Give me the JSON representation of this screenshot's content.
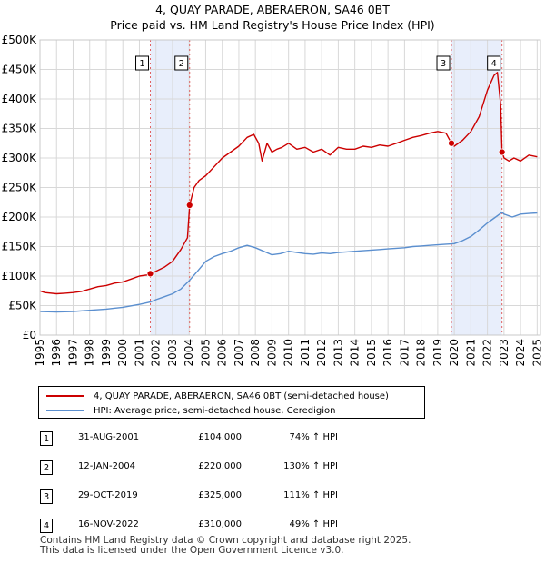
{
  "header": {
    "title": "4, QUAY PARADE, ABERAERON, SA46 0BT",
    "subtitle": "Price paid vs. HM Land Registry's House Price Index (HPI)"
  },
  "chart_data": {
    "type": "line",
    "title": "4, QUAY PARADE, ABERAERON, SA46 0BT",
    "subtitle": "Price paid vs. HM Land Registry's House Price Index (HPI)",
    "xlabel": "",
    "ylabel": "",
    "xlim": [
      1995,
      2025.2
    ],
    "ylim": [
      0,
      500000
    ],
    "grid": true,
    "y_ticks": [
      {
        "value": 0,
        "label": "£0"
      },
      {
        "value": 50000,
        "label": "£50K"
      },
      {
        "value": 100000,
        "label": "£100K"
      },
      {
        "value": 150000,
        "label": "£150K"
      },
      {
        "value": 200000,
        "label": "£200K"
      },
      {
        "value": 250000,
        "label": "£250K"
      },
      {
        "value": 300000,
        "label": "£300K"
      },
      {
        "value": 350000,
        "label": "£350K"
      },
      {
        "value": 400000,
        "label": "£400K"
      },
      {
        "value": 450000,
        "label": "£450K"
      },
      {
        "value": 500000,
        "label": "£500K"
      }
    ],
    "x_ticks": [
      "1995",
      "1996",
      "1997",
      "1998",
      "1999",
      "2000",
      "2001",
      "2002",
      "2003",
      "2004",
      "2005",
      "2006",
      "2007",
      "2008",
      "2009",
      "2010",
      "2011",
      "2012",
      "2013",
      "2014",
      "2015",
      "2016",
      "2017",
      "2018",
      "2019",
      "2020",
      "2021",
      "2022",
      "2023",
      "2024",
      "2025"
    ],
    "shaded_periods": [
      {
        "from": 2001.66,
        "to": 2004.03
      },
      {
        "from": 2019.83,
        "to": 2022.88
      }
    ],
    "series": [
      {
        "name": "4, QUAY PARADE, ABERAERON, SA46 0BT (semi-detached house)",
        "color": "#cc0000",
        "x": [
          1995.0,
          1995.3,
          1996.0,
          1996.5,
          1997.0,
          1997.5,
          1998.0,
          1998.5,
          1999.0,
          1999.5,
          2000.0,
          2000.5,
          2001.0,
          2001.5,
          2001.66,
          2002.0,
          2002.5,
          2003.0,
          2003.5,
          2003.9,
          2004.03,
          2004.3,
          2004.6,
          2005.0,
          2005.5,
          2006.0,
          2006.5,
          2007.0,
          2007.5,
          2007.9,
          2008.2,
          2008.4,
          2008.7,
          2009.0,
          2009.3,
          2009.6,
          2010.0,
          2010.5,
          2011.0,
          2011.5,
          2012.0,
          2012.5,
          2013.0,
          2013.5,
          2014.0,
          2014.5,
          2015.0,
          2015.5,
          2016.0,
          2016.5,
          2017.0,
          2017.5,
          2018.0,
          2018.5,
          2019.0,
          2019.5,
          2019.83,
          2020.0,
          2020.5,
          2021.0,
          2021.5,
          2022.0,
          2022.4,
          2022.6,
          2022.8,
          2022.88,
          2023.0,
          2023.3,
          2023.6,
          2024.0,
          2024.5,
          2025.0
        ],
        "values": [
          75000,
          72000,
          70000,
          71000,
          72000,
          74000,
          78000,
          82000,
          84000,
          88000,
          90000,
          95000,
          100000,
          102000,
          104000,
          108000,
          115000,
          125000,
          145000,
          165000,
          220000,
          250000,
          262000,
          270000,
          285000,
          300000,
          310000,
          320000,
          335000,
          340000,
          325000,
          295000,
          325000,
          310000,
          315000,
          318000,
          325000,
          315000,
          318000,
          310000,
          315000,
          305000,
          318000,
          315000,
          315000,
          320000,
          318000,
          322000,
          320000,
          325000,
          330000,
          335000,
          338000,
          342000,
          345000,
          342000,
          325000,
          320000,
          330000,
          345000,
          370000,
          415000,
          440000,
          445000,
          390000,
          310000,
          300000,
          295000,
          300000,
          295000,
          305000,
          302000
        ]
      },
      {
        "name": "HPI: Average price, semi-detached house, Ceredigion",
        "color": "#5b8fcf",
        "x": [
          1995.0,
          1996.0,
          1997.0,
          1998.0,
          1999.0,
          2000.0,
          2001.0,
          2001.66,
          2002.0,
          2002.5,
          2003.0,
          2003.5,
          2004.0,
          2004.5,
          2005.0,
          2005.5,
          2006.0,
          2006.5,
          2007.0,
          2007.5,
          2008.0,
          2008.5,
          2009.0,
          2009.5,
          2010.0,
          2010.5,
          2011.0,
          2011.5,
          2012.0,
          2012.5,
          2013.0,
          2013.5,
          2014.0,
          2014.5,
          2015.0,
          2015.5,
          2016.0,
          2016.5,
          2017.0,
          2017.5,
          2018.0,
          2018.5,
          2019.0,
          2019.5,
          2019.83,
          2020.0,
          2020.5,
          2021.0,
          2021.5,
          2022.0,
          2022.5,
          2022.88,
          2023.0,
          2023.5,
          2024.0,
          2024.5,
          2025.0
        ],
        "values": [
          40000,
          39000,
          40000,
          42000,
          44000,
          47000,
          52000,
          56000,
          60000,
          65000,
          70000,
          78000,
          92000,
          108000,
          125000,
          133000,
          138000,
          142000,
          148000,
          152000,
          148000,
          142000,
          136000,
          138000,
          142000,
          140000,
          138000,
          137000,
          139000,
          138000,
          140000,
          141000,
          142000,
          143000,
          144000,
          145000,
          146000,
          147000,
          148000,
          150000,
          151000,
          152000,
          153000,
          154000,
          154500,
          155000,
          160000,
          167000,
          178000,
          190000,
          200000,
          208000,
          205000,
          200000,
          205000,
          206000,
          207000
        ]
      }
    ],
    "transactions": [
      {
        "id": "1",
        "x": 2001.66,
        "value": 104000
      },
      {
        "id": "2",
        "x": 2004.03,
        "value": 220000
      },
      {
        "id": "3",
        "x": 2019.83,
        "value": 325000
      },
      {
        "id": "4",
        "x": 2022.88,
        "value": 310000
      }
    ]
  },
  "legend": {
    "items": [
      {
        "label": "4, QUAY PARADE, ABERAERON, SA46 0BT (semi-detached house)",
        "color": "#cc0000"
      },
      {
        "label": "HPI: Average price, semi-detached house, Ceredigion",
        "color": "#5b8fcf"
      }
    ]
  },
  "transactions_table": [
    {
      "num": "1",
      "date": "31-AUG-2001",
      "price": "£104,000",
      "hpi": "74% ↑ HPI"
    },
    {
      "num": "2",
      "date": "12-JAN-2004",
      "price": "£220,000",
      "hpi": "130% ↑ HPI"
    },
    {
      "num": "3",
      "date": "29-OCT-2019",
      "price": "£325,000",
      "hpi": "111% ↑ HPI"
    },
    {
      "num": "4",
      "date": "16-NOV-2022",
      "price": "£310,000",
      "hpi": "49% ↑ HPI"
    }
  ],
  "footer": {
    "line1": "Contains HM Land Registry data © Crown copyright and database right 2025.",
    "line2": "This data is licensed under the Open Government Licence v3.0."
  }
}
